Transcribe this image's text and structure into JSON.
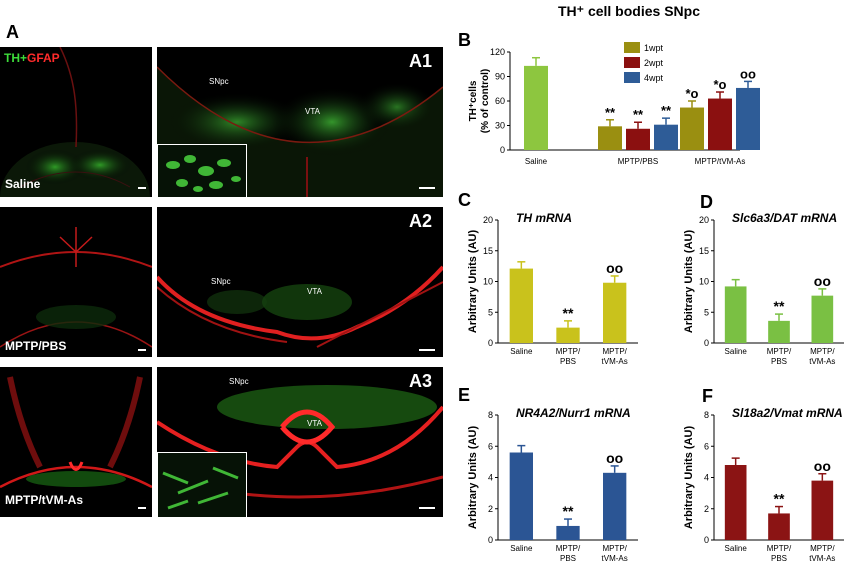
{
  "panel_a": {
    "letter": "A",
    "stain_th": "TH+",
    "stain_gfap": "GFAP",
    "rows": [
      {
        "group": "Saline",
        "tag": "A1",
        "snpc": "SNpc",
        "vta": "VTA"
      },
      {
        "group": "MPTP/PBS",
        "tag": "A2",
        "snpc": "SNpc",
        "vta": "VTA"
      },
      {
        "group": "MPTP/tVM-As",
        "tag": "A3",
        "snpc": "SNpc",
        "vta": "VTA"
      }
    ]
  },
  "colors": {
    "saline_b": "#8dc63f",
    "olive": "#9a8f11",
    "darkred": "#8b1010",
    "blue": "#2e5c97",
    "yellow": "#c9c21c",
    "green": "#7ac043",
    "navy": "#2b5594",
    "maroon": "#8b1414"
  },
  "chart_data": [
    {
      "id": "B",
      "type": "bar",
      "title": "TH⁺ cell bodies SNpc",
      "ylabel": "TH⁺cells (% of control)",
      "ylim": [
        0,
        120
      ],
      "yticks": [
        "0",
        "30",
        "60",
        "90",
        "120"
      ],
      "legend": [
        "1wpt",
        "2wpt",
        "4wpt"
      ],
      "legend_position": "top-right",
      "groups": [
        "Saline",
        "MPTP/PBS",
        "MPTP/tVM-As"
      ],
      "series": [
        {
          "name": "Saline",
          "values": [
            103
          ],
          "group": 0
        },
        {
          "name": "1wpt",
          "values": [
            29,
            52
          ],
          "group": [
            1,
            2
          ]
        },
        {
          "name": "2wpt",
          "values": [
            26,
            63
          ],
          "group": [
            1,
            2
          ]
        },
        {
          "name": "4wpt",
          "values": [
            31,
            76
          ],
          "group": [
            1,
            2
          ]
        }
      ],
      "annotations": [
        "**",
        "**",
        "**",
        "*o",
        "*o",
        "oo"
      ]
    },
    {
      "id": "C",
      "type": "bar",
      "title": "TH mRNA",
      "ylabel": "Arbitrary Units (AU)",
      "ylim": [
        0,
        20
      ],
      "yticks": [
        "0",
        "5",
        "10",
        "15",
        "20"
      ],
      "categories": [
        "Saline",
        "MPTP/ PBS",
        "MPTP/ tVM-As"
      ],
      "values": [
        12.1,
        2.5,
        9.8
      ],
      "annotations": [
        "",
        "**",
        "oo"
      ]
    },
    {
      "id": "D",
      "type": "bar",
      "title": "Slc6a3/DAT mRNA",
      "ylabel": "Arbitrary Units (AU)",
      "ylim": [
        0,
        20
      ],
      "yticks": [
        "0",
        "5",
        "10",
        "15",
        "20"
      ],
      "categories": [
        "Saline",
        "MPTP/ PBS",
        "MPTP/ tVM-As"
      ],
      "values": [
        9.2,
        3.6,
        7.7
      ],
      "annotations": [
        "",
        "**",
        "oo"
      ]
    },
    {
      "id": "E",
      "type": "bar",
      "title": "NR4A2/Nurr1 mRNA",
      "ylabel": "Arbitrary Units (AU)",
      "ylim": [
        0,
        8
      ],
      "yticks": [
        "0",
        "2",
        "4",
        "6",
        "8"
      ],
      "categories": [
        "Saline",
        "MPTP/ PBS",
        "MPTP/ tVM-As"
      ],
      "values": [
        5.6,
        0.9,
        4.3
      ],
      "annotations": [
        "",
        "**",
        "oo"
      ]
    },
    {
      "id": "F",
      "type": "bar",
      "title": "Sl18a2/Vmat mRNA",
      "ylabel": "Arbitrary Units (AU)",
      "ylim": [
        0,
        8
      ],
      "yticks": [
        "0",
        "2",
        "4",
        "6",
        "8"
      ],
      "categories": [
        "Saline",
        "MPTP/ PBS",
        "MPTP/ tVM-As"
      ],
      "values": [
        4.8,
        1.7,
        3.8
      ],
      "annotations": [
        "",
        "**",
        "oo"
      ]
    }
  ]
}
